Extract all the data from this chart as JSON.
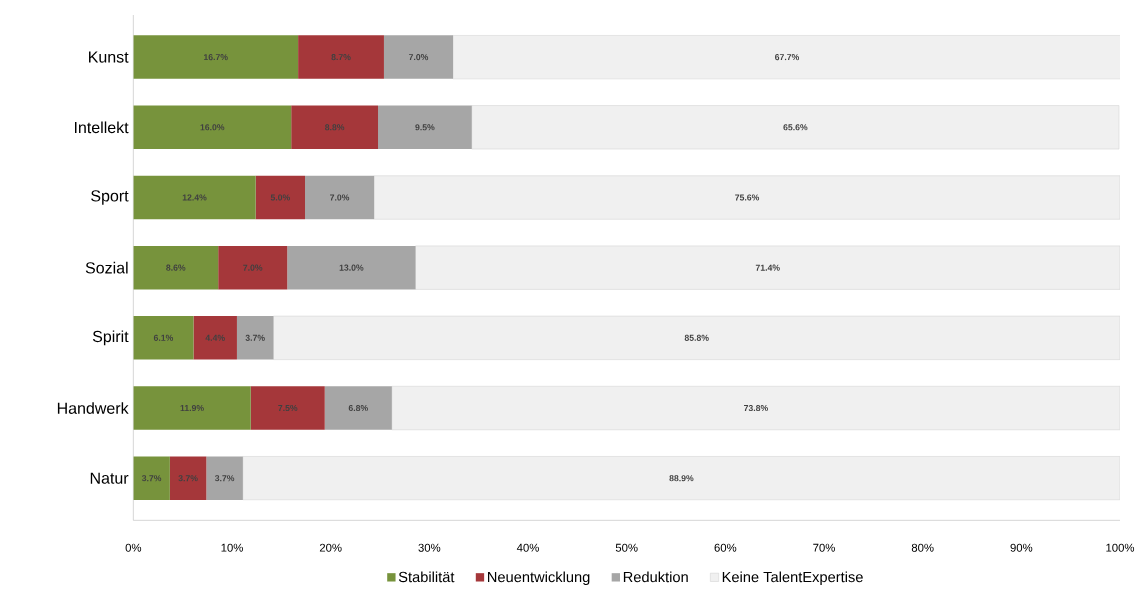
{
  "chart_data": {
    "type": "bar",
    "orientation": "horizontal",
    "stacked": true,
    "legend": "bottom",
    "categories": [
      "Kunst",
      "Intellekt",
      "Sport",
      "Sozial",
      "Spirit",
      "Handwerk",
      "Natur"
    ],
    "xlim": [
      0,
      100
    ],
    "xticks": [
      {
        "value": 0,
        "label": "0%"
      },
      {
        "value": 10,
        "label": "10%"
      },
      {
        "value": 20,
        "label": "20%"
      },
      {
        "value": 30,
        "label": "30%"
      },
      {
        "value": 40,
        "label": "40%"
      },
      {
        "value": 50,
        "label": "50%"
      },
      {
        "value": 60,
        "label": "60%"
      },
      {
        "value": 70,
        "label": "70%"
      },
      {
        "value": 80,
        "label": "80%"
      },
      {
        "value": 90,
        "label": "90%"
      },
      {
        "value": 100,
        "label": "100%"
      }
    ],
    "series": [
      {
        "name": "Stabilität",
        "color": "#77933c",
        "values": [
          16.7,
          16.0,
          12.4,
          8.6,
          6.1,
          11.9,
          3.7
        ],
        "value_labels": [
          "16.7%",
          "16.0%",
          "12.4%",
          "8.6%",
          "6.1%",
          "11.9%",
          "3.7%"
        ]
      },
      {
        "name": "Neuentwicklung",
        "color": "#a5373a",
        "values": [
          8.7,
          8.8,
          5.0,
          7.0,
          4.4,
          7.5,
          3.7
        ],
        "value_labels": [
          "8.7%",
          "8.8%",
          "5.0%",
          "7.0%",
          "4.4%",
          "7.5%",
          "3.7%"
        ]
      },
      {
        "name": "Reduktion",
        "color": "#a6a6a6",
        "values": [
          7.0,
          9.5,
          7.0,
          13.0,
          3.7,
          6.8,
          3.7
        ],
        "value_labels": [
          "7.0%",
          "9.5%",
          "7.0%",
          "13.0%",
          "3.7%",
          "6.8%",
          "3.7%"
        ]
      },
      {
        "name": "Keine TalentExpertise",
        "color": "#f0f0f0",
        "values": [
          67.7,
          65.6,
          75.6,
          71.4,
          85.8,
          73.8,
          88.9
        ],
        "value_labels": [
          "67.7%",
          "65.6%",
          "75.6%",
          "71.4%",
          "85.8%",
          "73.8%",
          "88.9%"
        ]
      }
    ]
  }
}
